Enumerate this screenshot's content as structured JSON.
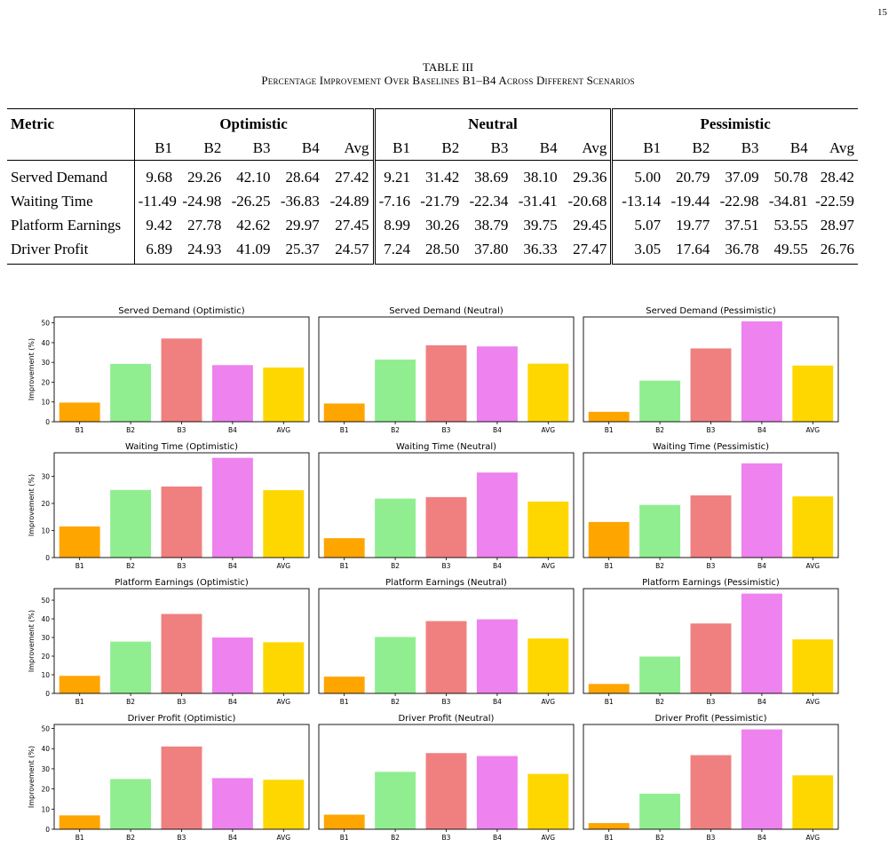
{
  "page_number": "15",
  "table": {
    "label": "TABLE III",
    "title": "Percentage Improvement Over Baselines B1–B4 Across Different Scenarios",
    "metric_header": "Metric",
    "scenarios": [
      "Optimistic",
      "Neutral",
      "Pessimistic"
    ],
    "subheaders": [
      "B1",
      "B2",
      "B3",
      "B4",
      "Avg"
    ],
    "rows": [
      {
        "metric": "Served Demand",
        "values": [
          "9.68",
          "29.26",
          "42.10",
          "28.64",
          "27.42",
          "9.21",
          "31.42",
          "38.69",
          "38.10",
          "29.36",
          "5.00",
          "20.79",
          "37.09",
          "50.78",
          "28.42"
        ]
      },
      {
        "metric": "Waiting Time",
        "values": [
          "-11.49",
          "-24.98",
          "-26.25",
          "-36.83",
          "-24.89",
          "-7.16",
          "-21.79",
          "-22.34",
          "-31.41",
          "-20.68",
          "-13.14",
          "-19.44",
          "-22.98",
          "-34.81",
          "-22.59"
        ]
      },
      {
        "metric": "Platform Earnings",
        "values": [
          "9.42",
          "27.78",
          "42.62",
          "29.97",
          "27.45",
          "8.99",
          "30.26",
          "38.79",
          "39.75",
          "29.45",
          "5.07",
          "19.77",
          "37.51",
          "53.55",
          "28.97"
        ]
      },
      {
        "metric": "Driver Profit",
        "values": [
          "6.89",
          "24.93",
          "41.09",
          "25.37",
          "24.57",
          "7.24",
          "28.50",
          "37.80",
          "36.33",
          "27.47",
          "3.05",
          "17.64",
          "36.78",
          "49.55",
          "26.76"
        ]
      }
    ]
  },
  "chart_data": [
    {
      "type": "bar",
      "title": "Served Demand (Optimistic)",
      "categories": [
        "B1",
        "B2",
        "B3",
        "B4",
        "AVG"
      ],
      "values": [
        9.68,
        29.26,
        42.1,
        28.64,
        27.42
      ],
      "ylabel": "Improvement (%)",
      "ylim": [
        0,
        53
      ],
      "yticks": [
        0,
        10,
        20,
        30,
        40,
        50
      ]
    },
    {
      "type": "bar",
      "title": "Served Demand (Neutral)",
      "categories": [
        "B1",
        "B2",
        "B3",
        "B4",
        "AVG"
      ],
      "values": [
        9.21,
        31.42,
        38.69,
        38.1,
        29.36
      ],
      "ylabel": "",
      "ylim": [
        0,
        53
      ],
      "yticks": []
    },
    {
      "type": "bar",
      "title": "Served Demand (Pessimistic)",
      "categories": [
        "B1",
        "B2",
        "B3",
        "B4",
        "AVG"
      ],
      "values": [
        5.0,
        20.79,
        37.09,
        50.78,
        28.42
      ],
      "ylabel": "",
      "ylim": [
        0,
        53
      ],
      "yticks": []
    },
    {
      "type": "bar",
      "title": "Waiting Time (Optimistic)",
      "categories": [
        "B1",
        "B2",
        "B3",
        "B4",
        "AVG"
      ],
      "values": [
        11.49,
        24.98,
        26.25,
        36.83,
        24.89
      ],
      "ylabel": "Improvement (%)",
      "ylim": [
        0,
        38.7
      ],
      "yticks": [
        0,
        10,
        20,
        30
      ]
    },
    {
      "type": "bar",
      "title": "Waiting Time (Neutral)",
      "categories": [
        "B1",
        "B2",
        "B3",
        "B4",
        "AVG"
      ],
      "values": [
        7.16,
        21.79,
        22.34,
        31.41,
        20.68
      ],
      "ylabel": "",
      "ylim": [
        0,
        38.7
      ],
      "yticks": []
    },
    {
      "type": "bar",
      "title": "Waiting Time (Pessimistic)",
      "categories": [
        "B1",
        "B2",
        "B3",
        "B4",
        "AVG"
      ],
      "values": [
        13.14,
        19.44,
        22.98,
        34.81,
        22.59
      ],
      "ylabel": "",
      "ylim": [
        0,
        38.7
      ],
      "yticks": []
    },
    {
      "type": "bar",
      "title": "Platform Earnings (Optimistic)",
      "categories": [
        "B1",
        "B2",
        "B3",
        "B4",
        "AVG"
      ],
      "values": [
        9.42,
        27.78,
        42.62,
        29.97,
        27.45
      ],
      "ylabel": "Improvement (%)",
      "ylim": [
        0,
        56.2
      ],
      "yticks": [
        0,
        10,
        20,
        30,
        40,
        50
      ]
    },
    {
      "type": "bar",
      "title": "Platform Earnings (Neutral)",
      "categories": [
        "B1",
        "B2",
        "B3",
        "B4",
        "AVG"
      ],
      "values": [
        8.99,
        30.26,
        38.79,
        39.75,
        29.45
      ],
      "ylabel": "",
      "ylim": [
        0,
        56.2
      ],
      "yticks": []
    },
    {
      "type": "bar",
      "title": "Platform Earnings (Pessimistic)",
      "categories": [
        "B1",
        "B2",
        "B3",
        "B4",
        "AVG"
      ],
      "values": [
        5.07,
        19.77,
        37.51,
        53.55,
        28.97
      ],
      "ylabel": "",
      "ylim": [
        0,
        56.2
      ],
      "yticks": []
    },
    {
      "type": "bar",
      "title": "Driver Profit (Optimistic)",
      "categories": [
        "B1",
        "B2",
        "B3",
        "B4",
        "AVG"
      ],
      "values": [
        6.89,
        24.93,
        41.09,
        25.37,
        24.57
      ],
      "ylabel": "Improvement (%)",
      "ylim": [
        0,
        52
      ],
      "yticks": [
        0,
        10,
        20,
        30,
        40,
        50
      ]
    },
    {
      "type": "bar",
      "title": "Driver Profit (Neutral)",
      "categories": [
        "B1",
        "B2",
        "B3",
        "B4",
        "AVG"
      ],
      "values": [
        7.24,
        28.5,
        37.8,
        36.33,
        27.47
      ],
      "ylabel": "",
      "ylim": [
        0,
        52
      ],
      "yticks": []
    },
    {
      "type": "bar",
      "title": "Driver Profit (Pessimistic)",
      "categories": [
        "B1",
        "B2",
        "B3",
        "B4",
        "AVG"
      ],
      "values": [
        3.05,
        17.64,
        36.78,
        49.55,
        26.76
      ],
      "ylabel": "",
      "ylim": [
        0,
        52
      ],
      "yticks": []
    }
  ],
  "bar_colors": [
    "#ffa500",
    "#90ee90",
    "#f08080",
    "#ee82ee",
    "#ffd700"
  ]
}
